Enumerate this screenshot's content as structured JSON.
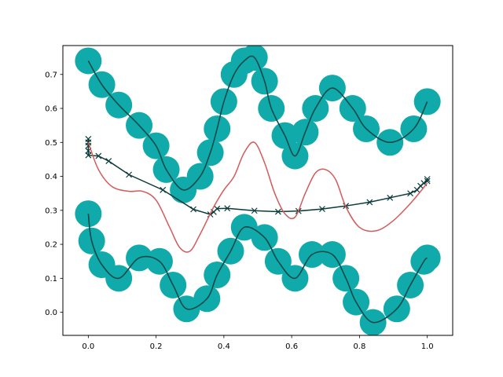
{
  "chart_data": {
    "type": "line",
    "title": "",
    "xlabel": "",
    "ylabel": "",
    "xlim": [
      -0.075,
      1.075
    ],
    "ylim": [
      -0.068,
      0.785
    ],
    "xticks": [
      0.0,
      0.2,
      0.4,
      0.6,
      0.8,
      1.0
    ],
    "xtick_labels": [
      "0.0",
      "0.2",
      "0.4",
      "0.6",
      "0.8",
      "1.0"
    ],
    "yticks": [
      0.0,
      0.1,
      0.2,
      0.3,
      0.4,
      0.5,
      0.6,
      0.7
    ],
    "ytick_labels": [
      "0.0",
      "0.1",
      "0.2",
      "0.3",
      "0.4",
      "0.5",
      "0.6",
      "0.7"
    ],
    "grid": false,
    "legend": "none",
    "series": [
      {
        "style": "line-with-large-markers",
        "line_color": "#0b4a4a",
        "marker_color": "#11aaaa",
        "x": [
          0.0,
          0.04,
          0.09,
          0.15,
          0.2,
          0.23,
          0.28,
          0.33,
          0.36,
          0.38,
          0.4,
          0.43,
          0.46,
          0.49,
          0.52,
          0.54,
          0.58,
          0.61,
          0.64,
          0.67,
          0.72,
          0.78,
          0.82,
          0.89,
          0.96,
          1.0
        ],
        "y": [
          0.74,
          0.67,
          0.61,
          0.55,
          0.49,
          0.42,
          0.36,
          0.4,
          0.47,
          0.54,
          0.62,
          0.7,
          0.74,
          0.75,
          0.68,
          0.6,
          0.52,
          0.46,
          0.53,
          0.6,
          0.66,
          0.6,
          0.54,
          0.5,
          0.54,
          0.62
        ]
      },
      {
        "style": "line-with-large-markers",
        "line_color": "#0b4a4a",
        "marker_color": "#11aaaa",
        "x": [
          0.0,
          0.01,
          0.04,
          0.09,
          0.15,
          0.21,
          0.25,
          0.29,
          0.35,
          0.38,
          0.42,
          0.46,
          0.52,
          0.56,
          0.61,
          0.66,
          0.72,
          0.76,
          0.79,
          0.84,
          0.91,
          0.95,
          0.99,
          1.0
        ],
        "y": [
          0.29,
          0.21,
          0.14,
          0.1,
          0.16,
          0.15,
          0.08,
          0.01,
          0.04,
          0.11,
          0.18,
          0.25,
          0.22,
          0.15,
          0.1,
          0.17,
          0.17,
          0.1,
          0.03,
          -0.03,
          0.01,
          0.08,
          0.15,
          0.16
        ]
      },
      {
        "style": "line-with-x-markers",
        "line_color": "#0b3a3a",
        "marker_color": "#0b3a3a",
        "x": [
          0.0,
          0.0,
          0.0,
          0.0,
          0.0,
          0.03,
          0.06,
          0.12,
          0.22,
          0.31,
          0.36,
          0.37,
          0.38,
          0.41,
          0.49,
          0.56,
          0.62,
          0.69,
          0.76,
          0.83,
          0.89,
          0.95,
          0.97,
          0.98,
          0.99,
          1.0,
          1.0
        ],
        "y": [
          0.51,
          0.5,
          0.49,
          0.475,
          0.462,
          0.46,
          0.445,
          0.405,
          0.36,
          0.303,
          0.288,
          0.295,
          0.305,
          0.306,
          0.299,
          0.296,
          0.298,
          0.304,
          0.313,
          0.324,
          0.337,
          0.35,
          0.36,
          0.372,
          0.38,
          0.386,
          0.392
        ]
      },
      {
        "style": "line",
        "line_color": "#d45a5a",
        "x": [
          0.0,
          0.03,
          0.07,
          0.12,
          0.16,
          0.2,
          0.24,
          0.27,
          0.3,
          0.33,
          0.37,
          0.4,
          0.43,
          0.46,
          0.49,
          0.52,
          0.55,
          0.58,
          0.61,
          0.64,
          0.67,
          0.7,
          0.73,
          0.76,
          0.8,
          0.85,
          0.9,
          0.95,
          1.0
        ],
        "y": [
          0.5,
          0.42,
          0.37,
          0.356,
          0.356,
          0.33,
          0.25,
          0.19,
          0.18,
          0.23,
          0.31,
          0.36,
          0.4,
          0.47,
          0.5,
          0.44,
          0.35,
          0.29,
          0.28,
          0.35,
          0.41,
          0.42,
          0.39,
          0.31,
          0.25,
          0.24,
          0.27,
          0.32,
          0.38
        ]
      }
    ]
  }
}
